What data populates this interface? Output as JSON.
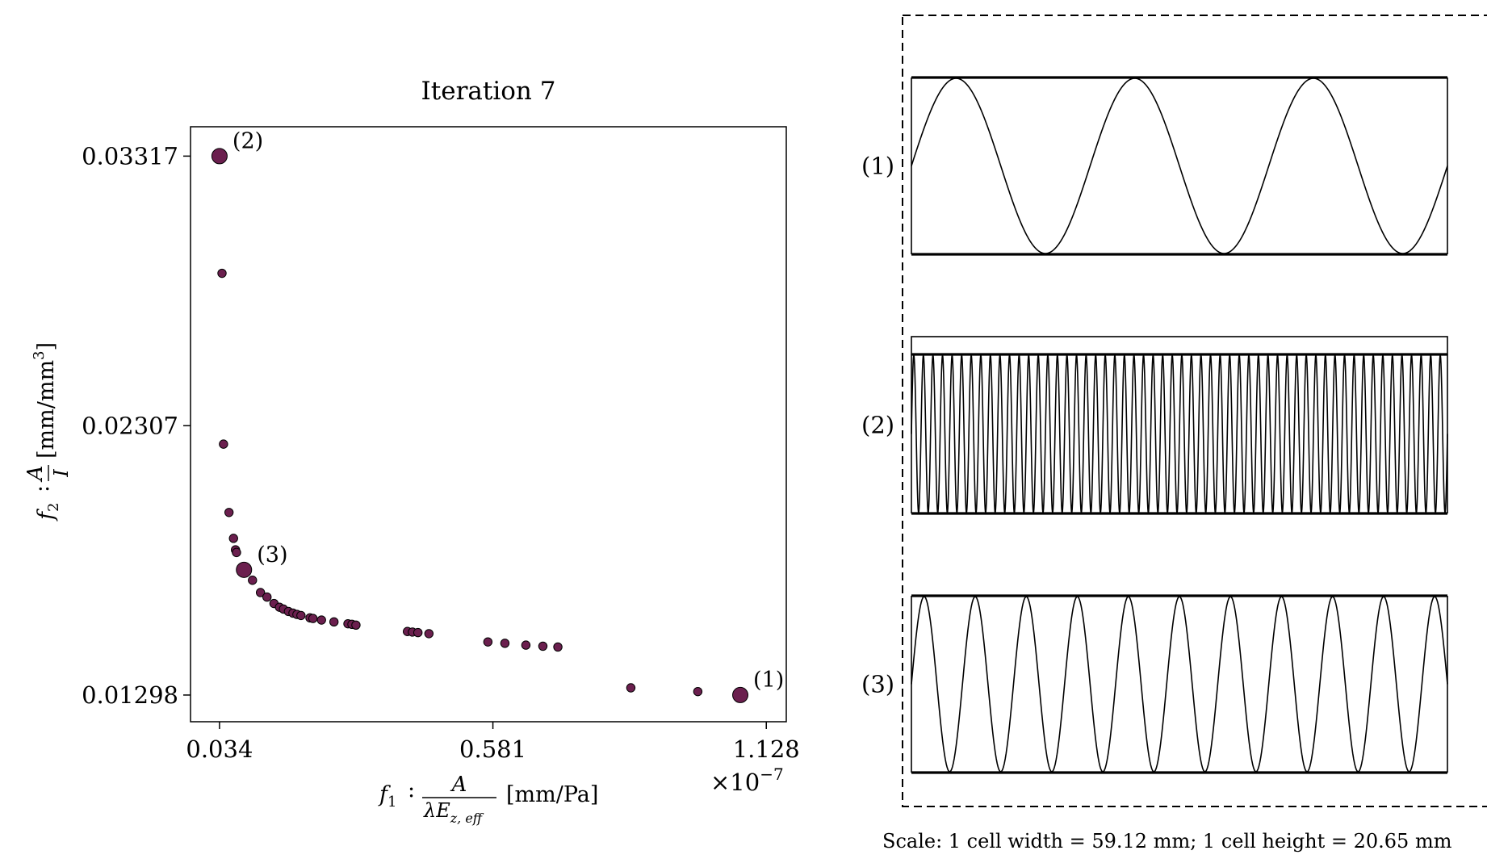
{
  "chart_data": {
    "type": "scatter",
    "title": "Iteration 7",
    "xlabel": {
      "symbol": "f",
      "sub": "1",
      "colon": ":",
      "num": "A",
      "den_pre": "λE",
      "den_sub": "z, eff",
      "unit": "[mm/Pa]"
    },
    "ylabel": {
      "symbol": "f",
      "sub": "2",
      "colon": ":",
      "num": "A",
      "den": "I",
      "unit": "[mm/mm",
      "unit_sup": "3",
      "unit_end": "]"
    },
    "x_offset_text": {
      "base": "×10",
      "exp": "−7"
    },
    "x_ticks": [
      0.034,
      0.581,
      1.128
    ],
    "x_tick_labels": [
      "0.034",
      "0.581",
      "1.128"
    ],
    "y_ticks": [
      0.01298,
      0.02307,
      0.03317
    ],
    "y_tick_labels": [
      "0.01298",
      "0.02307",
      "0.03317"
    ],
    "xlim": [
      -0.024,
      1.168
    ],
    "ylim": [
      0.01198,
      0.03427
    ],
    "point_color": "#6b1f4e",
    "points": [
      {
        "x": 0.034,
        "y": 0.03317,
        "size": "large",
        "label": "(2)"
      },
      {
        "x": 0.039,
        "y": 0.02878
      },
      {
        "x": 0.042,
        "y": 0.02238
      },
      {
        "x": 0.053,
        "y": 0.01982
      },
      {
        "x": 0.062,
        "y": 0.01885
      },
      {
        "x": 0.066,
        "y": 0.01842
      },
      {
        "x": 0.068,
        "y": 0.01832
      },
      {
        "x": 0.083,
        "y": 0.01767,
        "size": "large",
        "label": "(3)"
      },
      {
        "x": 0.1,
        "y": 0.01728
      },
      {
        "x": 0.116,
        "y": 0.01682
      },
      {
        "x": 0.129,
        "y": 0.01665
      },
      {
        "x": 0.143,
        "y": 0.01641
      },
      {
        "x": 0.154,
        "y": 0.01627
      },
      {
        "x": 0.162,
        "y": 0.0162
      },
      {
        "x": 0.172,
        "y": 0.01611
      },
      {
        "x": 0.181,
        "y": 0.01605
      },
      {
        "x": 0.189,
        "y": 0.016
      },
      {
        "x": 0.197,
        "y": 0.01596
      },
      {
        "x": 0.215,
        "y": 0.01587
      },
      {
        "x": 0.221,
        "y": 0.01585
      },
      {
        "x": 0.238,
        "y": 0.01579
      },
      {
        "x": 0.263,
        "y": 0.01572
      },
      {
        "x": 0.291,
        "y": 0.01565
      },
      {
        "x": 0.299,
        "y": 0.01563
      },
      {
        "x": 0.307,
        "y": 0.0156
      },
      {
        "x": 0.41,
        "y": 0.01536
      },
      {
        "x": 0.42,
        "y": 0.01534
      },
      {
        "x": 0.431,
        "y": 0.01532
      },
      {
        "x": 0.453,
        "y": 0.01528
      },
      {
        "x": 0.571,
        "y": 0.01497
      },
      {
        "x": 0.605,
        "y": 0.01492
      },
      {
        "x": 0.647,
        "y": 0.01485
      },
      {
        "x": 0.681,
        "y": 0.01481
      },
      {
        "x": 0.711,
        "y": 0.01478
      },
      {
        "x": 0.857,
        "y": 0.01325
      },
      {
        "x": 0.991,
        "y": 0.01311
      },
      {
        "x": 1.076,
        "y": 0.01298,
        "size": "large",
        "label": "(1)"
      }
    ]
  },
  "panel": {
    "cells": [
      {
        "label": "(1)",
        "periods": 3
      },
      {
        "label": "(2)",
        "periods": 56
      },
      {
        "label": "(3)",
        "periods": 10.5
      }
    ],
    "scale_text": "Scale: 1 cell width = 59.12 mm; 1 cell height = 20.65 mm"
  }
}
